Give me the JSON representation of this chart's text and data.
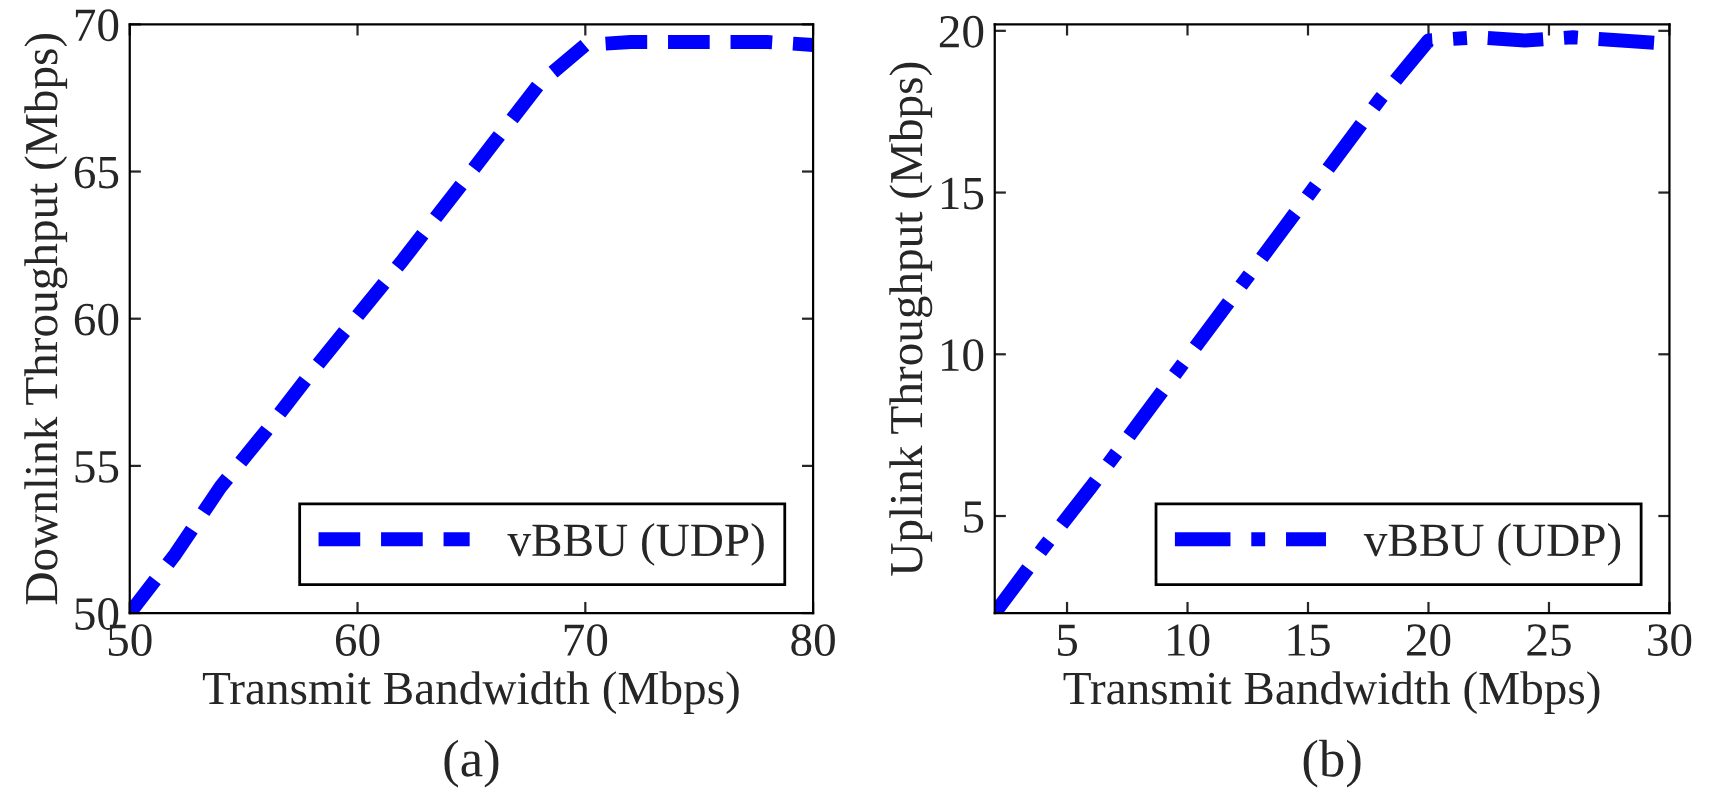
{
  "chart_data": [
    {
      "type": "line",
      "xlabel": "Transmit Bandwidth (Mbps)",
      "ylabel": "Downlink Throughput (Mbps)",
      "annotations": [
        "(a)"
      ],
      "xlim": [
        50,
        80
      ],
      "xticks": [
        50,
        60,
        70,
        80
      ],
      "ylim": [
        50,
        70
      ],
      "yticks": [
        50,
        55,
        60,
        65,
        70
      ],
      "grid": false,
      "legend": "bottom right",
      "series": [
        {
          "name": "vBBU (UDP)",
          "color": "#0000ff",
          "line_style": "dashed",
          "x": [
            50,
            52,
            54,
            56,
            58,
            60,
            62,
            64,
            66,
            68,
            70,
            72,
            75,
            78,
            80
          ],
          "values": [
            50,
            52,
            54.3,
            56.2,
            58.2,
            60.1,
            62,
            64,
            66,
            68,
            69.3,
            69.4,
            69.4,
            69.4,
            69.3
          ]
        }
      ]
    },
    {
      "type": "line",
      "xlabel": "Transmit Bandwidth (Mbps)",
      "ylabel": "Uplink Throughput (Mbps)",
      "annotations": [
        "(b)"
      ],
      "xlim": [
        2,
        30
      ],
      "xticks": [
        5,
        10,
        15,
        20,
        25,
        30
      ],
      "ylim": [
        2,
        20.2
      ],
      "yticks": [
        5,
        10,
        15,
        20
      ],
      "grid": false,
      "legend": "bottom right",
      "series": [
        {
          "name": "vBBU (UDP)",
          "color": "#0000ff",
          "line_style": "dashdot",
          "x": [
            2,
            4,
            6,
            8,
            10,
            12,
            14,
            16,
            18,
            20,
            22,
            24,
            26,
            28,
            30
          ],
          "values": [
            2,
            4,
            5.9,
            7.9,
            9.9,
            11.9,
            13.9,
            15.9,
            17.9,
            19.7,
            19.8,
            19.7,
            19.8,
            19.7,
            19.6
          ]
        }
      ]
    }
  ]
}
